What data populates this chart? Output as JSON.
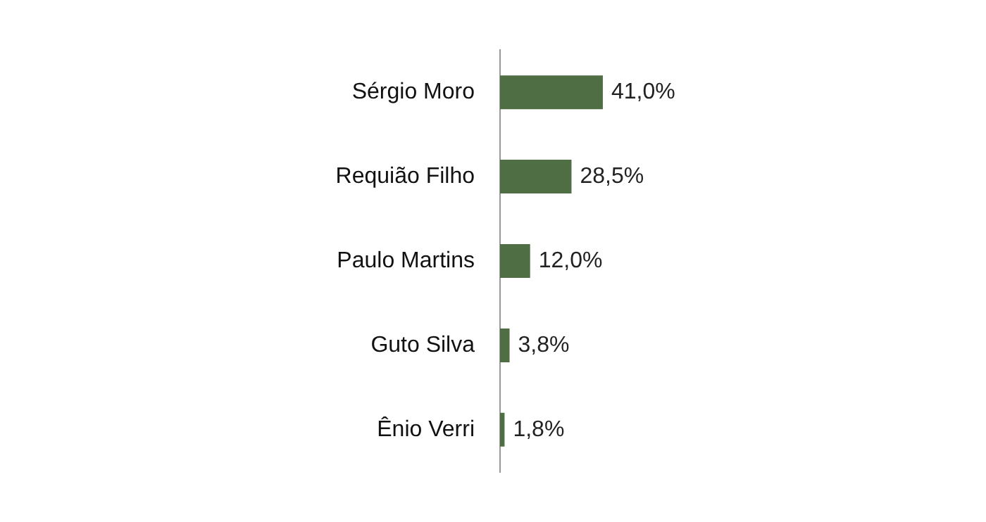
{
  "chart_data": {
    "type": "bar",
    "orientation": "horizontal",
    "categories": [
      "Sérgio Moro",
      "Requião Filho",
      "Paulo Martins",
      "Guto Silva",
      "Ênio Verri"
    ],
    "values": [
      41.0,
      28.5,
      12.0,
      3.8,
      1.8
    ],
    "value_labels": [
      "41,0%",
      "28,5%",
      "12,0%",
      "3,8%",
      "1,8%"
    ],
    "color": "#4f6e44",
    "legend": false,
    "tick_labels": "y"
  }
}
